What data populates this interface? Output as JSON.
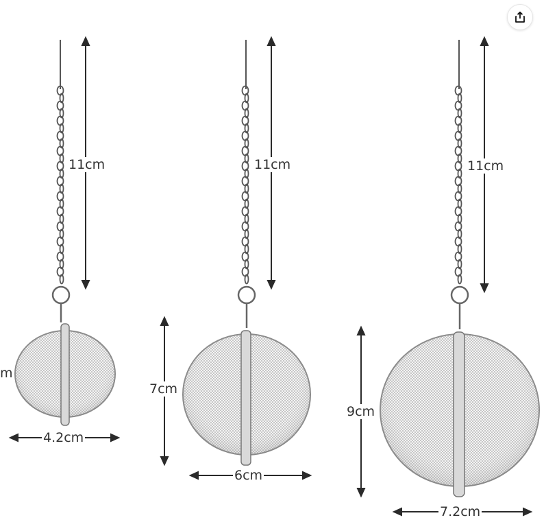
{
  "share": {
    "icon": "share-icon"
  },
  "colors": {
    "metal": "#9a9a9a",
    "dark": "#4a4a4a",
    "arrow": "#2a2a2a"
  },
  "infusers": [
    {
      "chain_label": "11cm",
      "height_label": "m",
      "width_label": "4.2cm"
    },
    {
      "chain_label": "11cm",
      "height_label": "7cm",
      "width_label": "6cm"
    },
    {
      "chain_label": "11cm",
      "height_label": "9cm",
      "width_label": "7.2cm"
    }
  ]
}
